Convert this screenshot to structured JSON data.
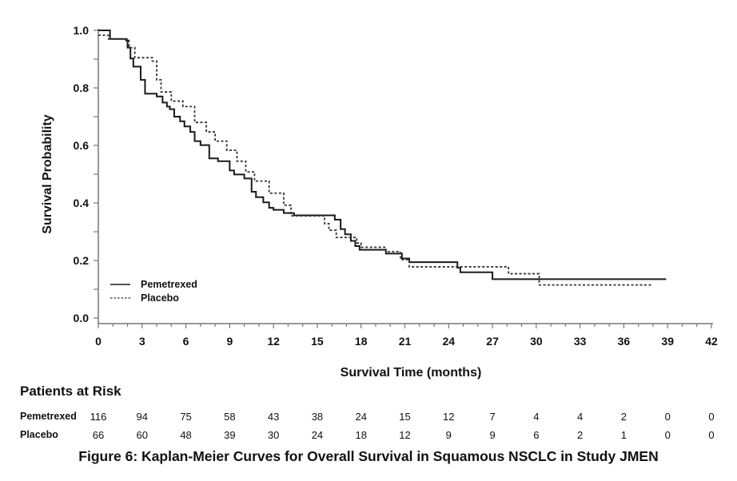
{
  "chart_data": {
    "type": "line",
    "subtype": "kaplan-meier step",
    "xlabel": "Survival Time (months)",
    "ylabel": "Survival Probability",
    "xlim": [
      0,
      42
    ],
    "ylim": [
      0,
      1.0
    ],
    "x_ticks": [
      "0",
      "3",
      "6",
      "9",
      "12",
      "15",
      "18",
      "21",
      "24",
      "27",
      "30",
      "33",
      "36",
      "39",
      "42"
    ],
    "y_ticks": [
      "0.0",
      "0.2",
      "0.4",
      "0.6",
      "0.8",
      "1.0"
    ],
    "grid": false,
    "legend_position": "bottom-left",
    "series": [
      {
        "name": "Pemetrexed",
        "style": "solid",
        "color": "#1a1a1a",
        "points": [
          [
            0,
            1.0
          ],
          [
            0.8,
            0.97
          ],
          [
            1.9,
            0.965
          ],
          [
            2.0,
            0.94
          ],
          [
            2.2,
            0.902
          ],
          [
            2.4,
            0.874
          ],
          [
            2.9,
            0.828
          ],
          [
            3.2,
            0.78
          ],
          [
            4.0,
            0.77
          ],
          [
            4.4,
            0.749
          ],
          [
            4.7,
            0.735
          ],
          [
            4.9,
            0.726
          ],
          [
            5.2,
            0.7
          ],
          [
            5.6,
            0.684
          ],
          [
            5.9,
            0.666
          ],
          [
            6.3,
            0.647
          ],
          [
            6.6,
            0.615
          ],
          [
            7.0,
            0.601
          ],
          [
            7.6,
            0.555
          ],
          [
            8.2,
            0.545
          ],
          [
            9.0,
            0.513
          ],
          [
            9.3,
            0.499
          ],
          [
            10.0,
            0.485
          ],
          [
            10.5,
            0.439
          ],
          [
            10.8,
            0.42
          ],
          [
            11.3,
            0.402
          ],
          [
            11.7,
            0.383
          ],
          [
            12.0,
            0.376
          ],
          [
            12.7,
            0.365
          ],
          [
            13.4,
            0.357
          ],
          [
            16.2,
            0.342
          ],
          [
            16.6,
            0.309
          ],
          [
            16.9,
            0.291
          ],
          [
            17.3,
            0.268
          ],
          [
            17.6,
            0.25
          ],
          [
            17.9,
            0.237
          ],
          [
            19.7,
            0.224
          ],
          [
            20.8,
            0.207
          ],
          [
            21.3,
            0.194
          ],
          [
            24.6,
            0.175
          ],
          [
            24.8,
            0.159
          ],
          [
            27.0,
            0.135
          ],
          [
            38.9,
            0.135
          ]
        ]
      },
      {
        "name": "Placebo",
        "style": "dotted",
        "color": "#333333",
        "points": [
          [
            0,
            0.983
          ],
          [
            0.7,
            0.97
          ],
          [
            2.1,
            0.94
          ],
          [
            2.5,
            0.905
          ],
          [
            3.7,
            0.893
          ],
          [
            4.0,
            0.828
          ],
          [
            4.3,
            0.786
          ],
          [
            5.0,
            0.754
          ],
          [
            5.8,
            0.735
          ],
          [
            6.6,
            0.68
          ],
          [
            7.4,
            0.647
          ],
          [
            8.0,
            0.615
          ],
          [
            8.8,
            0.583
          ],
          [
            9.5,
            0.545
          ],
          [
            10.1,
            0.508
          ],
          [
            10.7,
            0.476
          ],
          [
            11.7,
            0.434
          ],
          [
            12.7,
            0.392
          ],
          [
            13.2,
            0.355
          ],
          [
            15.5,
            0.328
          ],
          [
            15.8,
            0.305
          ],
          [
            16.3,
            0.28
          ],
          [
            17.7,
            0.261
          ],
          [
            18.0,
            0.246
          ],
          [
            19.7,
            0.231
          ],
          [
            20.7,
            0.203
          ],
          [
            21.3,
            0.178
          ],
          [
            28.1,
            0.154
          ],
          [
            30.2,
            0.115
          ],
          [
            37.9,
            0.115
          ]
        ]
      }
    ],
    "risk_table": {
      "title": "Patients at Risk",
      "times": [
        0,
        3,
        6,
        9,
        12,
        15,
        18,
        21,
        24,
        27,
        30,
        33,
        36,
        39,
        42
      ],
      "rows": [
        {
          "label": "Pemetrexed",
          "values": [
            "116",
            "94",
            "75",
            "58",
            "43",
            "38",
            "24",
            "15",
            "12",
            "7",
            "4",
            "4",
            "2",
            "0",
            "0"
          ]
        },
        {
          "label": "Placebo",
          "values": [
            "66",
            "60",
            "48",
            "39",
            "30",
            "24",
            "18",
            "12",
            "9",
            "9",
            "6",
            "2",
            "1",
            "0",
            "0"
          ]
        }
      ]
    },
    "caption": "Figure 6: Kaplan-Meier Curves for Overall Survival in Squamous NSCLC in Study JMEN"
  }
}
